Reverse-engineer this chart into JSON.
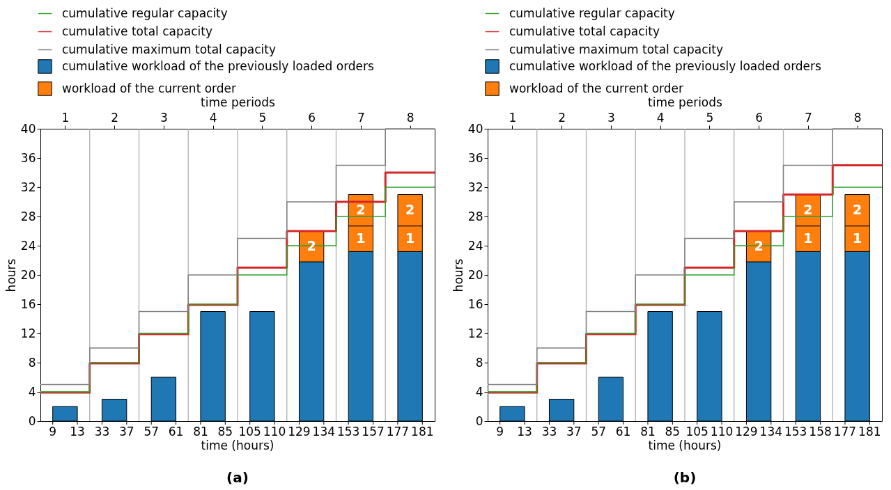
{
  "chart_data": [
    {
      "type": "bar",
      "title": "(a)",
      "xlabel": "time periods",
      "ylabel": "hours",
      "stacked": true,
      "legend": "top",
      "xlim": [
        0.5,
        8.5
      ],
      "xticks": [
        1,
        2,
        3,
        4,
        5,
        6,
        7,
        8
      ],
      "ylim": [
        0,
        40
      ],
      "yticks": [
        0,
        4,
        8,
        12,
        16,
        20,
        24,
        28,
        32,
        36,
        40
      ],
      "ref_lines": [
        {
          "axis": "x",
          "value": 1.5,
          "color": "#b0b0b0"
        },
        {
          "axis": "x",
          "value": 2.5,
          "color": "#b0b0b0"
        },
        {
          "axis": "x",
          "value": 3.5,
          "color": "#b0b0b0"
        },
        {
          "axis": "x",
          "value": 4.5,
          "color": "#b0b0b0"
        },
        {
          "axis": "x",
          "value": 5.5,
          "color": "#b0b0b0"
        },
        {
          "axis": "x",
          "value": 6.5,
          "color": "#b0b0b0"
        },
        {
          "axis": "x",
          "value": 7.5,
          "color": "#b0b0b0"
        }
      ],
      "x": [
        1,
        2,
        3,
        4,
        5,
        6,
        7,
        8
      ],
      "annotations": [
        "time (hours)",
        "9",
        "13",
        "33",
        "37",
        "57",
        "61",
        "81",
        "85",
        "105",
        "110",
        "129",
        "134",
        "153",
        "157",
        "177",
        "181",
        "2",
        "1",
        "2",
        "1",
        "2"
      ],
      "series": [
        {
          "type": "step",
          "name": "cumulative regular capacity",
          "color": "#2ca02c",
          "x": [
            0.5,
            1.5,
            2.5,
            3.5,
            4.5,
            5.5,
            6.5,
            7.5,
            8.5
          ],
          "values": [
            4,
            8,
            12,
            16,
            20,
            24,
            28,
            32,
            32
          ]
        },
        {
          "type": "step",
          "name": "cumulative total capacity",
          "color": "#d62728",
          "x": [
            0.5,
            1.5,
            2.5,
            3.5,
            4.5,
            5.5,
            6.5,
            7.5,
            8.5
          ],
          "values": [
            3.9,
            7.9,
            11.9,
            15.9,
            21,
            26,
            30,
            34,
            34
          ]
        },
        {
          "type": "step",
          "name": "cumulative maximum total capacity",
          "color": "#7f7f7f",
          "x": [
            0.5,
            1.5,
            2.5,
            3.5,
            4.5,
            5.5,
            6.5,
            7.5,
            8.5
          ],
          "values": [
            5,
            10,
            15,
            20,
            25,
            30,
            35,
            40,
            40
          ]
        },
        {
          "type": "bar",
          "name": "cumulative workload of the previously loaded orders",
          "color": "#1f77b4",
          "values": [
            2,
            3,
            6,
            15,
            15,
            21.8,
            23.2,
            23.2
          ]
        },
        {
          "type": "bar",
          "name": "workload of the current order",
          "color": "#ff7f0e",
          "values": [
            null,
            null,
            null,
            null,
            null,
            null,
            3.5,
            3.5
          ]
        },
        {
          "type": "bar",
          "color": "#ff7f0e",
          "values": [
            null,
            null,
            null,
            null,
            null,
            4.2,
            4.3,
            4.3
          ]
        }
      ]
    },
    {
      "type": "bar",
      "title": "(b)",
      "xlabel": "time periods",
      "ylabel": "hours",
      "stacked": true,
      "legend": "top",
      "xlim": [
        0.5,
        8.5
      ],
      "xticks": [
        1,
        2,
        3,
        4,
        5,
        6,
        7,
        8
      ],
      "ylim": [
        0,
        40
      ],
      "yticks": [
        0,
        4,
        8,
        12,
        16,
        20,
        24,
        28,
        32,
        36,
        40
      ],
      "ref_lines": [
        {
          "axis": "x",
          "value": 1.5,
          "color": "#b0b0b0"
        },
        {
          "axis": "x",
          "value": 2.5,
          "color": "#b0b0b0"
        },
        {
          "axis": "x",
          "value": 3.5,
          "color": "#b0b0b0"
        },
        {
          "axis": "x",
          "value": 4.5,
          "color": "#b0b0b0"
        },
        {
          "axis": "x",
          "value": 5.5,
          "color": "#b0b0b0"
        },
        {
          "axis": "x",
          "value": 6.5,
          "color": "#b0b0b0"
        },
        {
          "axis": "x",
          "value": 7.5,
          "color": "#b0b0b0"
        }
      ],
      "x": [
        1,
        2,
        3,
        4,
        5,
        6,
        7,
        8
      ],
      "annotations": [
        "time (hours)",
        "9",
        "13",
        "33",
        "37",
        "57",
        "61",
        "81",
        "85",
        "105",
        "110",
        "129",
        "134",
        "153",
        "158",
        "177",
        "181",
        "2",
        "1",
        "2",
        "1",
        "2"
      ],
      "series": [
        {
          "type": "step",
          "name": "cumulative regular capacity",
          "color": "#2ca02c",
          "x": [
            0.5,
            1.5,
            2.5,
            3.5,
            4.5,
            5.5,
            6.5,
            7.5,
            8.5
          ],
          "values": [
            4,
            8,
            12,
            16,
            20,
            24,
            28,
            32,
            32
          ]
        },
        {
          "type": "step",
          "name": "cumulative total capacity",
          "color": "#d62728",
          "x": [
            0.5,
            1.5,
            2.5,
            3.5,
            4.5,
            5.5,
            6.5,
            7.5,
            8.5
          ],
          "values": [
            3.9,
            7.9,
            11.9,
            15.9,
            21,
            26,
            31,
            35,
            35
          ]
        },
        {
          "type": "step",
          "name": "cumulative maximum total capacity",
          "color": "#7f7f7f",
          "x": [
            0.5,
            1.5,
            2.5,
            3.5,
            4.5,
            5.5,
            6.5,
            7.5,
            8.5
          ],
          "values": [
            5,
            10,
            15,
            20,
            25,
            30,
            35,
            40,
            40
          ]
        },
        {
          "type": "bar",
          "name": "cumulative workload of the previously loaded orders",
          "color": "#1f77b4",
          "values": [
            2,
            3,
            6,
            15,
            15,
            21.8,
            23.2,
            23.2
          ]
        },
        {
          "type": "bar",
          "name": "workload of the current order",
          "color": "#ff7f0e",
          "values": [
            null,
            null,
            null,
            null,
            null,
            null,
            3.5,
            3.5
          ]
        },
        {
          "type": "bar",
          "color": "#ff7f0e",
          "values": [
            null,
            null,
            null,
            null,
            null,
            4.2,
            4.3,
            4.3
          ]
        }
      ]
    }
  ]
}
